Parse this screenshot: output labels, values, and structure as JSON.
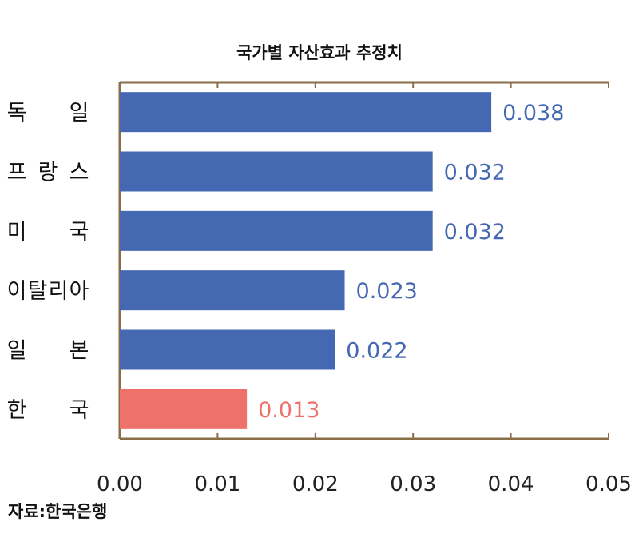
{
  "chart_data": {
    "type": "bar",
    "orientation": "horizontal",
    "title": "국가별 자산효과 추정치",
    "categories": [
      "독일",
      "프랑스",
      "미국",
      "이탈리아",
      "일본",
      "한국"
    ],
    "values": [
      0.038,
      0.032,
      0.032,
      0.023,
      0.022,
      0.013
    ],
    "value_labels": [
      "0.038",
      "0.032",
      "0.032",
      "0.023",
      "0.022",
      "0.013"
    ],
    "highlight_category": "한국",
    "xlim": [
      0,
      0.05
    ],
    "x_ticks": [
      0.0,
      0.01,
      0.02,
      0.03,
      0.04,
      0.05
    ],
    "x_tick_labels": [
      "0.00",
      "0.01",
      "0.02",
      "0.03",
      "0.04",
      "0.05"
    ],
    "xlabel": "",
    "ylabel": "",
    "grid": false,
    "legend": "none",
    "colors": {
      "bar": "#4468b2",
      "highlight": "#ef716c",
      "axis": "#8a6e48"
    }
  },
  "source": "자료:한국은행"
}
